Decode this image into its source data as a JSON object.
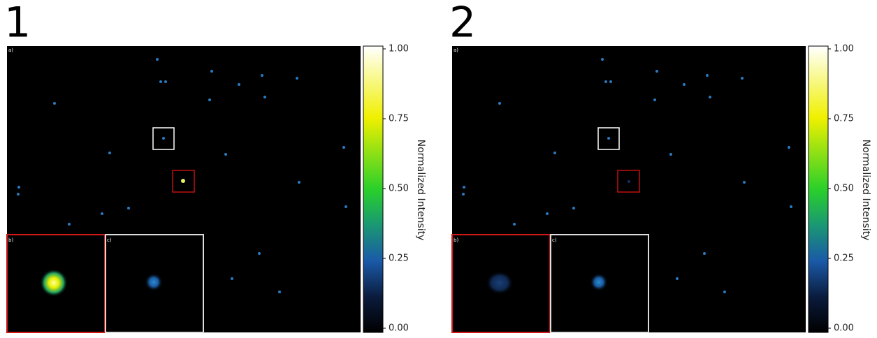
{
  "chart_data": [
    {
      "type": "image",
      "title": "1",
      "panel_labels": [
        "a)",
        "b)",
        "c)"
      ],
      "colorbar_label": "Normalized Intensity",
      "clim": [
        0,
        1
      ],
      "cticks": [
        {
          "value": 0,
          "label": "0.00"
        },
        {
          "value": 0.25,
          "label": "0.25"
        },
        {
          "value": 0.5,
          "label": "0.50"
        },
        {
          "value": 0.75,
          "label": "0.75"
        },
        {
          "value": 1,
          "label": "1.00"
        }
      ]
    },
    {
      "type": "image",
      "title": "2",
      "panel_labels": [
        "a)",
        "b)",
        "c)"
      ],
      "colorbar_label": "Normalized Intensity",
      "clim": [
        0,
        1
      ],
      "cticks": [
        {
          "value": 0,
          "label": "0.00"
        },
        {
          "value": 0.25,
          "label": "0.25"
        },
        {
          "value": 0.5,
          "label": "0.50"
        },
        {
          "value": 0.75,
          "label": "0.75"
        },
        {
          "value": 1,
          "label": "1.00"
        }
      ]
    }
  ]
}
